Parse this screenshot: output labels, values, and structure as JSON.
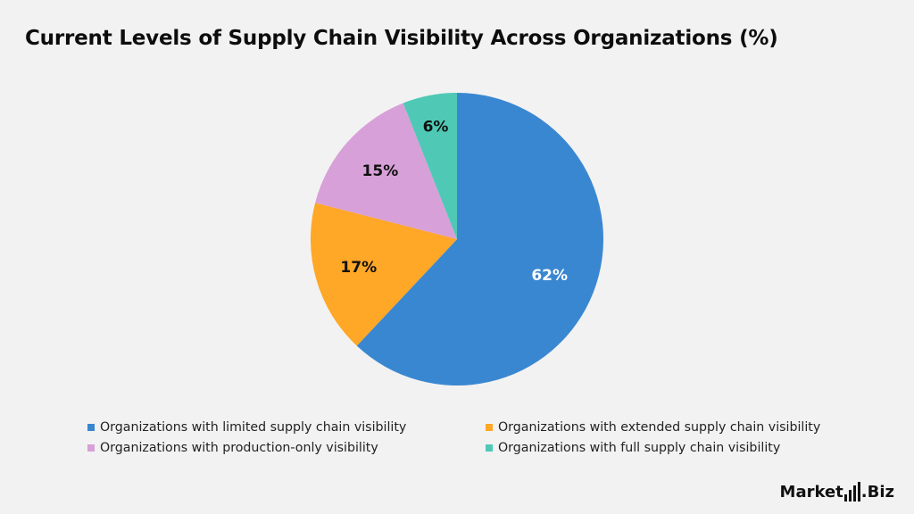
{
  "chart_data": {
    "type": "pie",
    "title": "Current Levels of Supply Chain Visibility Across Organizations (%)",
    "slices": [
      {
        "label": "Organizations with limited supply chain visibility",
        "value": 62,
        "display": "62%",
        "color": "#3a87d1",
        "label_color": "#ffffff"
      },
      {
        "label": "Organizations with extended supply chain visibility",
        "value": 17,
        "display": "17%",
        "color": "#ffa726",
        "label_color": "#111111"
      },
      {
        "label": "Organizations with production-only visibility",
        "value": 15,
        "display": "15%",
        "color": "#d8a0d8",
        "label_color": "#111111"
      },
      {
        "label": "Organizations with full supply chain visibility",
        "value": 6,
        "display": "6%",
        "color": "#4fc9b6",
        "label_color": "#111111"
      }
    ],
    "start_angle": "12 o'clock",
    "direction": "clockwise",
    "legend_position": "bottom"
  },
  "brand": {
    "name_prefix": "Market",
    "name_suffix": ".Biz"
  }
}
